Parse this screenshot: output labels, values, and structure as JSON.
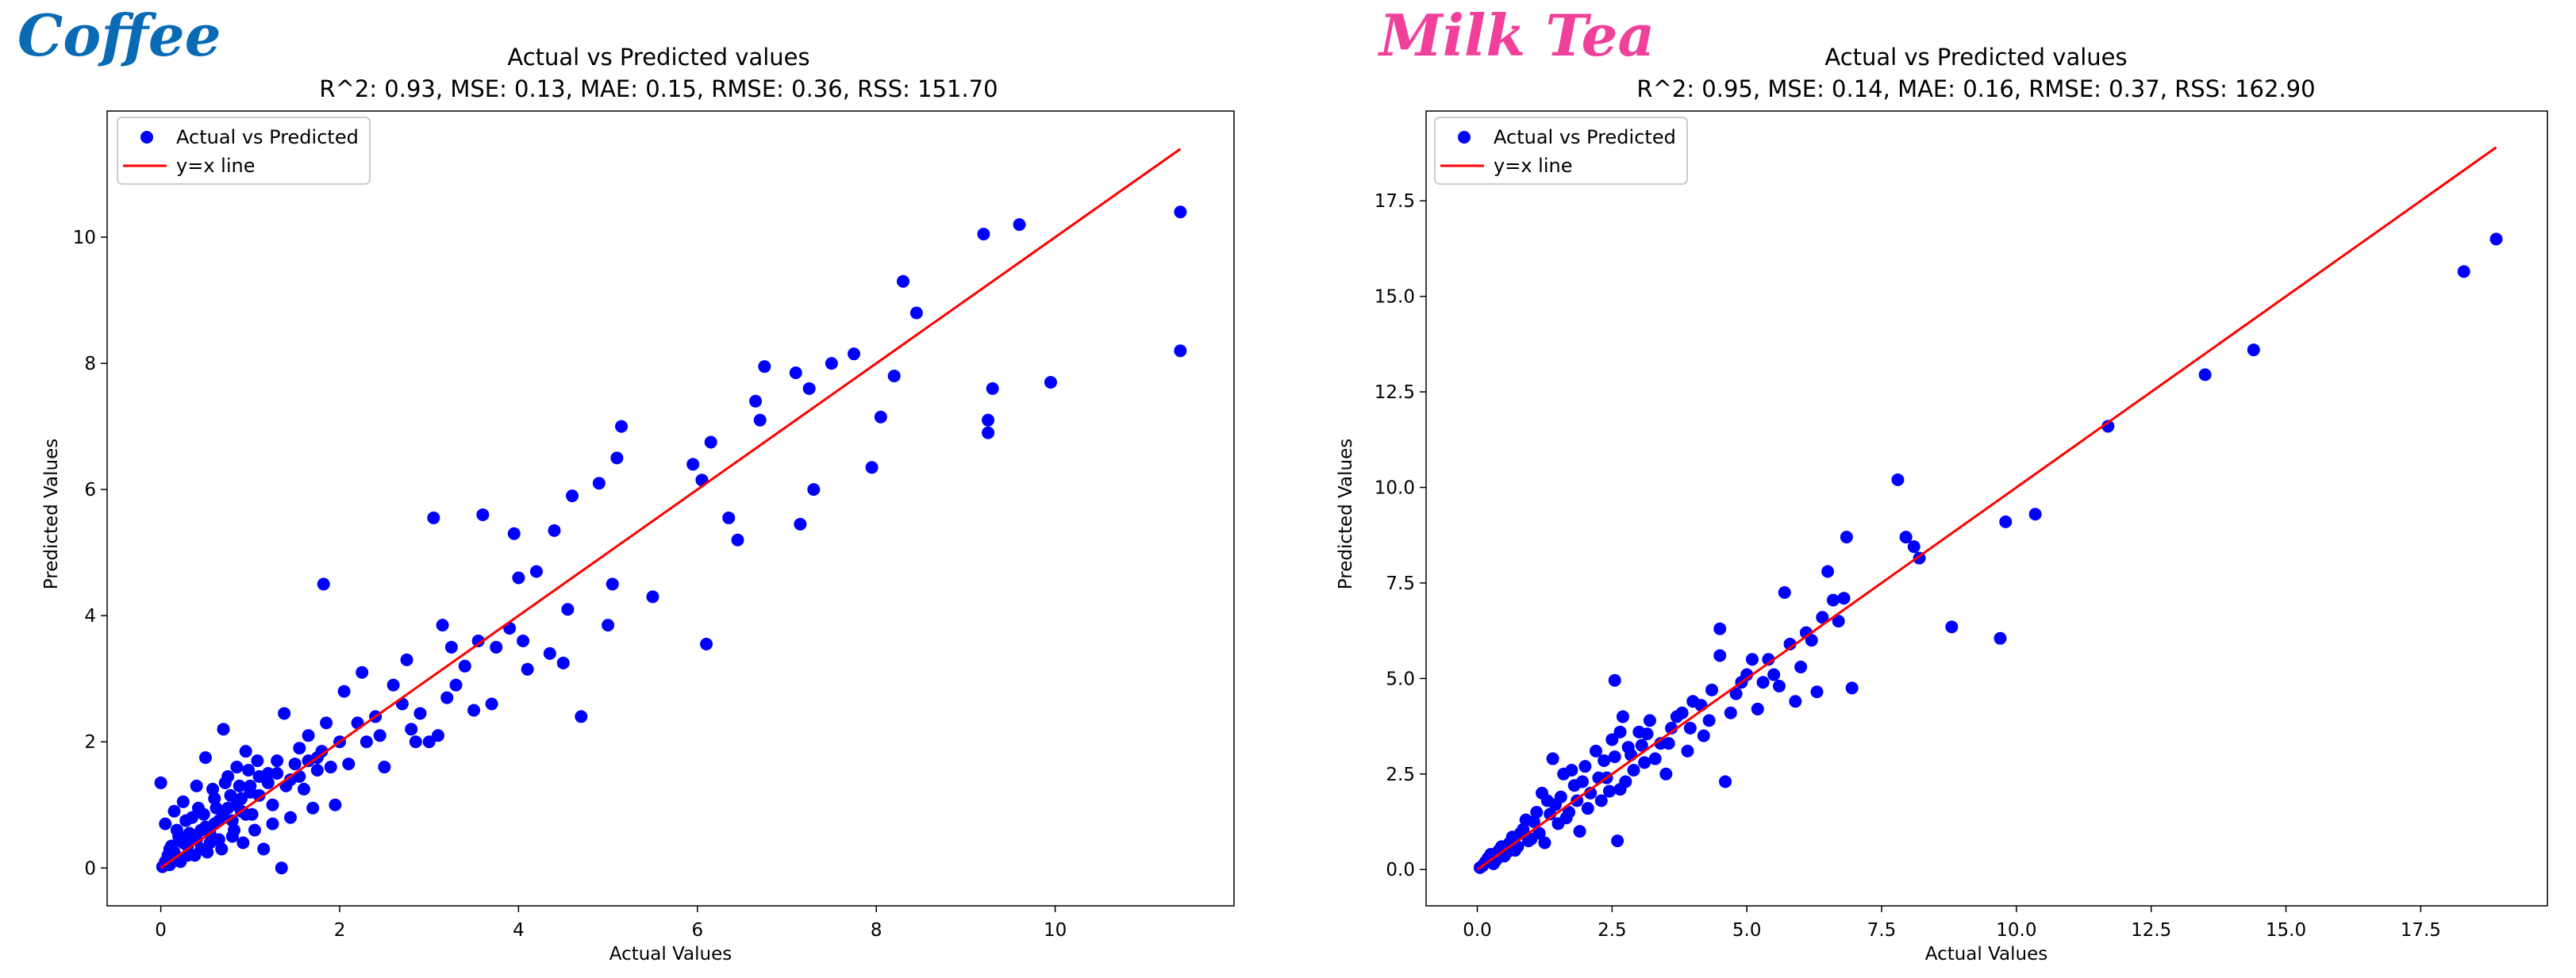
{
  "chart_data": [
    {
      "type": "scatter",
      "brand": "Coffee",
      "brand_color": "#0a6bb5",
      "title": "Actual vs Predicted values",
      "subtitle": "R^2: 0.93, MSE: 0.13, MAE: 0.15, RMSE: 0.36, RSS: 151.70",
      "xlabel": "Actual Values",
      "ylabel": "Predicted Values",
      "xlim": [
        -0.6,
        12.0
      ],
      "ylim": [
        -0.6,
        12.0
      ],
      "xticks": [
        0,
        2,
        4,
        6,
        8,
        10
      ],
      "yticks": [
        0,
        2,
        4,
        6,
        8,
        10
      ],
      "tick_labels_x": [
        "0",
        "2",
        "4",
        "6",
        "8",
        "10"
      ],
      "tick_labels_y": [
        "0",
        "2",
        "4",
        "6",
        "8",
        "10"
      ],
      "legend": [
        "Actual vs Predicted",
        "y=x line"
      ],
      "legend_position": "top-left",
      "point_color": "#0000ff",
      "line_color": "#ff0000",
      "line": {
        "x": [
          0,
          11.4
        ],
        "y": [
          0,
          11.4
        ]
      },
      "points": [
        [
          0.0,
          1.35
        ],
        [
          0.05,
          0.7
        ],
        [
          0.1,
          0.3
        ],
        [
          0.15,
          0.9
        ],
        [
          0.2,
          0.5
        ],
        [
          0.25,
          1.05
        ],
        [
          0.3,
          0.2
        ],
        [
          0.35,
          0.8
        ],
        [
          0.4,
          1.3
        ],
        [
          0.45,
          0.6
        ],
        [
          0.5,
          1.75
        ],
        [
          0.55,
          0.4
        ],
        [
          0.6,
          1.1
        ],
        [
          0.65,
          0.75
        ],
        [
          0.7,
          2.2
        ],
        [
          0.75,
          1.45
        ],
        [
          0.8,
          0.5
        ],
        [
          0.85,
          1.6
        ],
        [
          0.9,
          0.9
        ],
        [
          0.95,
          1.85
        ],
        [
          1.0,
          1.2
        ],
        [
          1.05,
          0.6
        ],
        [
          1.1,
          1.45
        ],
        [
          1.15,
          0.3
        ],
        [
          1.2,
          1.5
        ],
        [
          1.25,
          1.0
        ],
        [
          1.3,
          1.7
        ],
        [
          1.35,
          0.0
        ],
        [
          1.38,
          2.45
        ],
        [
          1.4,
          1.3
        ],
        [
          1.45,
          0.8
        ],
        [
          1.5,
          1.65
        ],
        [
          1.55,
          1.9
        ],
        [
          1.6,
          1.25
        ],
        [
          1.65,
          2.1
        ],
        [
          1.7,
          0.95
        ],
        [
          1.75,
          1.55
        ],
        [
          1.8,
          1.85
        ],
        [
          1.82,
          4.5
        ],
        [
          1.85,
          2.3
        ],
        [
          1.9,
          1.6
        ],
        [
          1.95,
          1.0
        ],
        [
          2.0,
          2.0
        ],
        [
          2.05,
          2.8
        ],
        [
          2.1,
          1.65
        ],
        [
          2.2,
          2.3
        ],
        [
          2.25,
          3.1
        ],
        [
          2.3,
          2.0
        ],
        [
          2.4,
          2.4
        ],
        [
          2.45,
          2.1
        ],
        [
          2.5,
          1.6
        ],
        [
          2.6,
          2.9
        ],
        [
          2.7,
          2.6
        ],
        [
          2.75,
          3.3
        ],
        [
          2.8,
          2.2
        ],
        [
          2.85,
          2.0
        ],
        [
          2.9,
          2.45
        ],
        [
          3.0,
          2.0
        ],
        [
          3.05,
          5.55
        ],
        [
          3.1,
          2.1
        ],
        [
          3.15,
          3.85
        ],
        [
          3.2,
          2.7
        ],
        [
          3.25,
          3.5
        ],
        [
          3.3,
          2.9
        ],
        [
          3.4,
          3.2
        ],
        [
          3.5,
          2.5
        ],
        [
          3.55,
          3.6
        ],
        [
          3.6,
          5.6
        ],
        [
          3.7,
          2.6
        ],
        [
          3.75,
          3.5
        ],
        [
          3.9,
          3.8
        ],
        [
          3.95,
          5.3
        ],
        [
          4.0,
          4.6
        ],
        [
          4.05,
          3.6
        ],
        [
          4.1,
          3.15
        ],
        [
          4.2,
          4.7
        ],
        [
          4.35,
          3.4
        ],
        [
          4.4,
          5.35
        ],
        [
          4.5,
          3.25
        ],
        [
          4.55,
          4.1
        ],
        [
          4.6,
          5.9
        ],
        [
          4.7,
          2.4
        ],
        [
          4.9,
          6.1
        ],
        [
          5.0,
          3.85
        ],
        [
          5.05,
          4.5
        ],
        [
          5.1,
          6.5
        ],
        [
          5.15,
          7.0
        ],
        [
          5.5,
          4.3
        ],
        [
          5.95,
          6.4
        ],
        [
          6.05,
          6.15
        ],
        [
          6.1,
          3.55
        ],
        [
          6.15,
          6.75
        ],
        [
          6.35,
          5.55
        ],
        [
          6.45,
          5.2
        ],
        [
          6.65,
          7.4
        ],
        [
          6.7,
          7.1
        ],
        [
          6.75,
          7.95
        ],
        [
          7.1,
          7.85
        ],
        [
          7.15,
          5.45
        ],
        [
          7.25,
          7.6
        ],
        [
          7.3,
          6.0
        ],
        [
          7.5,
          8.0
        ],
        [
          7.75,
          8.15
        ],
        [
          7.95,
          6.35
        ],
        [
          8.05,
          7.15
        ],
        [
          8.2,
          7.8
        ],
        [
          8.3,
          9.3
        ],
        [
          8.45,
          8.8
        ],
        [
          9.2,
          10.05
        ],
        [
          9.25,
          7.1
        ],
        [
          9.25,
          6.9
        ],
        [
          9.3,
          7.6
        ],
        [
          9.6,
          10.2
        ],
        [
          9.95,
          7.7
        ],
        [
          11.4,
          10.4
        ],
        [
          11.4,
          8.2
        ],
        [
          0.05,
          0.1
        ],
        [
          0.1,
          0.05
        ],
        [
          0.15,
          0.25
        ],
        [
          0.2,
          0.15
        ],
        [
          0.25,
          0.4
        ],
        [
          0.3,
          0.35
        ],
        [
          0.35,
          0.5
        ],
        [
          0.4,
          0.45
        ],
        [
          0.45,
          0.3
        ],
        [
          0.5,
          0.65
        ],
        [
          0.55,
          0.55
        ],
        [
          0.6,
          0.7
        ],
        [
          0.65,
          0.45
        ],
        [
          0.7,
          0.85
        ],
        [
          0.75,
          0.95
        ],
        [
          0.8,
          0.75
        ],
        [
          0.85,
          1.0
        ],
        [
          0.9,
          1.1
        ],
        [
          0.95,
          0.85
        ],
        [
          1.0,
          1.3
        ],
        [
          1.1,
          1.15
        ],
        [
          1.2,
          1.35
        ],
        [
          1.25,
          0.7
        ],
        [
          1.3,
          1.5
        ],
        [
          1.45,
          1.4
        ],
        [
          1.55,
          1.45
        ],
        [
          1.65,
          1.7
        ],
        [
          1.75,
          1.75
        ],
        [
          0.02,
          0.02
        ],
        [
          0.08,
          0.2
        ],
        [
          0.12,
          0.35
        ],
        [
          0.18,
          0.6
        ],
        [
          0.22,
          0.1
        ],
        [
          0.28,
          0.75
        ],
        [
          0.32,
          0.55
        ],
        [
          0.38,
          0.2
        ],
        [
          0.42,
          0.95
        ],
        [
          0.48,
          0.85
        ],
        [
          0.52,
          0.25
        ],
        [
          0.58,
          1.25
        ],
        [
          0.62,
          0.95
        ],
        [
          0.68,
          0.3
        ],
        [
          0.72,
          1.35
        ],
        [
          0.78,
          1.15
        ],
        [
          0.82,
          0.6
        ],
        [
          0.88,
          1.3
        ],
        [
          0.92,
          0.4
        ],
        [
          0.98,
          1.55
        ],
        [
          1.02,
          0.85
        ],
        [
          1.08,
          1.7
        ]
      ]
    },
    {
      "type": "scatter",
      "brand": "Milk Tea",
      "brand_color": "#f0409a",
      "title": "Actual vs Predicted values",
      "subtitle": "R^2: 0.95, MSE: 0.14, MAE: 0.16, RMSE: 0.37, RSS: 162.90",
      "xlabel": "Actual Values",
      "ylabel": "Predicted Values",
      "xlim": [
        -0.95,
        19.85
      ],
      "ylim": [
        -0.95,
        19.85
      ],
      "xticks": [
        0,
        2.5,
        5,
        7.5,
        10,
        12.5,
        15,
        17.5
      ],
      "yticks": [
        0,
        2.5,
        5,
        7.5,
        10,
        12.5,
        15,
        17.5
      ],
      "tick_labels_x": [
        "0.0",
        "2.5",
        "5.0",
        "7.5",
        "10.0",
        "12.5",
        "15.0",
        "17.5"
      ],
      "tick_labels_y": [
        "0.0",
        "2.5",
        "5.0",
        "7.5",
        "10.0",
        "12.5",
        "15.0",
        "17.5"
      ],
      "legend": [
        "Actual vs Predicted",
        "y=x line"
      ],
      "legend_position": "top-left",
      "point_color": "#0000ff",
      "line_color": "#ff0000",
      "line": {
        "x": [
          0,
          18.9
        ],
        "y": [
          0,
          18.9
        ]
      },
      "points": [
        [
          0.1,
          0.1
        ],
        [
          0.2,
          0.3
        ],
        [
          0.3,
          0.15
        ],
        [
          0.4,
          0.5
        ],
        [
          0.5,
          0.35
        ],
        [
          0.6,
          0.7
        ],
        [
          0.7,
          0.5
        ],
        [
          0.8,
          0.95
        ],
        [
          0.9,
          1.3
        ],
        [
          1.0,
          0.8
        ],
        [
          1.1,
          1.5
        ],
        [
          1.2,
          2.0
        ],
        [
          1.25,
          0.7
        ],
        [
          1.3,
          1.8
        ],
        [
          1.4,
          2.9
        ],
        [
          1.5,
          1.2
        ],
        [
          1.6,
          2.5
        ],
        [
          1.7,
          1.5
        ],
        [
          1.8,
          2.2
        ],
        [
          1.9,
          1.0
        ],
        [
          2.0,
          2.7
        ],
        [
          2.1,
          2.0
        ],
        [
          2.2,
          3.1
        ],
        [
          2.3,
          1.8
        ],
        [
          2.4,
          2.4
        ],
        [
          2.5,
          3.4
        ],
        [
          2.55,
          4.95
        ],
        [
          2.6,
          0.75
        ],
        [
          2.65,
          2.1
        ],
        [
          2.7,
          4.0
        ],
        [
          2.8,
          3.2
        ],
        [
          2.9,
          2.6
        ],
        [
          3.0,
          3.6
        ],
        [
          3.1,
          2.8
        ],
        [
          3.2,
          3.9
        ],
        [
          3.4,
          3.3
        ],
        [
          3.5,
          2.5
        ],
        [
          3.6,
          3.7
        ],
        [
          3.8,
          4.1
        ],
        [
          3.9,
          3.1
        ],
        [
          4.0,
          4.4
        ],
        [
          4.2,
          3.5
        ],
        [
          4.3,
          3.9
        ],
        [
          4.5,
          5.6
        ],
        [
          4.6,
          2.3
        ],
        [
          4.5,
          6.3
        ],
        [
          4.8,
          4.6
        ],
        [
          5.0,
          5.1
        ],
        [
          5.2,
          4.2
        ],
        [
          5.4,
          5.5
        ],
        [
          5.6,
          4.8
        ],
        [
          5.7,
          7.25
        ],
        [
          5.8,
          5.9
        ],
        [
          5.9,
          4.4
        ],
        [
          6.0,
          5.3
        ],
        [
          6.1,
          6.2
        ],
        [
          6.2,
          6.0
        ],
        [
          6.3,
          4.65
        ],
        [
          6.4,
          6.6
        ],
        [
          6.5,
          7.8
        ],
        [
          6.6,
          7.05
        ],
        [
          6.7,
          6.5
        ],
        [
          6.8,
          7.1
        ],
        [
          6.85,
          8.7
        ],
        [
          6.95,
          4.75
        ],
        [
          7.8,
          10.2
        ],
        [
          7.95,
          8.7
        ],
        [
          8.1,
          8.45
        ],
        [
          8.2,
          8.15
        ],
        [
          8.8,
          6.35
        ],
        [
          9.7,
          6.05
        ],
        [
          9.8,
          9.1
        ],
        [
          10.35,
          9.3
        ],
        [
          11.7,
          11.6
        ],
        [
          13.5,
          12.95
        ],
        [
          14.4,
          13.6
        ],
        [
          18.3,
          15.65
        ],
        [
          18.9,
          16.5
        ],
        [
          0.05,
          0.05
        ],
        [
          0.15,
          0.2
        ],
        [
          0.25,
          0.4
        ],
        [
          0.35,
          0.25
        ],
        [
          0.45,
          0.6
        ],
        [
          0.55,
          0.45
        ],
        [
          0.65,
          0.85
        ],
        [
          0.75,
          0.6
        ],
        [
          0.85,
          1.05
        ],
        [
          0.95,
          0.75
        ],
        [
          1.05,
          1.25
        ],
        [
          1.15,
          0.95
        ],
        [
          1.35,
          1.45
        ],
        [
          1.45,
          1.7
        ],
        [
          1.55,
          1.9
        ],
        [
          1.65,
          1.35
        ],
        [
          1.75,
          2.6
        ],
        [
          1.85,
          1.8
        ],
        [
          1.95,
          2.3
        ],
        [
          2.05,
          1.6
        ],
        [
          2.25,
          2.4
        ],
        [
          2.35,
          2.85
        ],
        [
          2.45,
          2.05
        ],
        [
          2.55,
          2.95
        ],
        [
          2.65,
          3.6
        ],
        [
          2.75,
          2.3
        ],
        [
          2.85,
          3.0
        ],
        [
          3.05,
          3.25
        ],
        [
          3.15,
          3.55
        ],
        [
          3.3,
          2.9
        ],
        [
          3.55,
          3.3
        ],
        [
          3.7,
          4.0
        ],
        [
          3.95,
          3.7
        ],
        [
          4.15,
          4.3
        ],
        [
          4.35,
          4.7
        ],
        [
          4.7,
          4.1
        ],
        [
          4.9,
          4.9
        ],
        [
          5.1,
          5.5
        ],
        [
          5.3,
          4.9
        ],
        [
          5.5,
          5.1
        ]
      ]
    }
  ]
}
